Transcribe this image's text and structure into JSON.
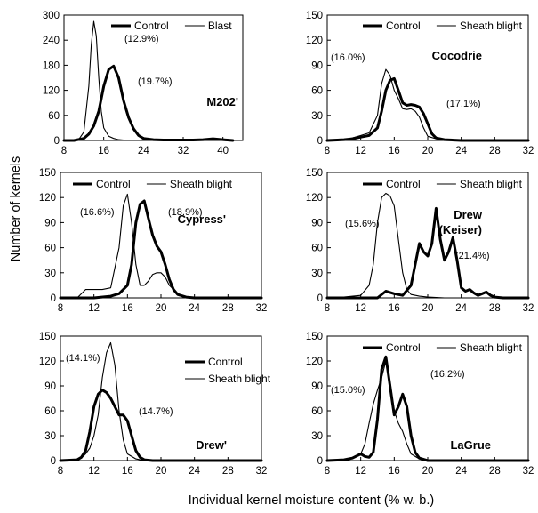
{
  "figure": {
    "ylabel": "Number of kernels",
    "xlabel": "Individual kernel moisture content (% w. b.)"
  },
  "chart_data": [
    {
      "type": "line",
      "variety": "M202'",
      "xlim": [
        8,
        44
      ],
      "ylim": [
        0,
        300
      ],
      "xticks": [
        "8",
        "16",
        "24",
        "32",
        "40"
      ],
      "yticks": [
        "0",
        "60",
        "120",
        "180",
        "240",
        "300"
      ],
      "legend": [
        "Control",
        "Blast"
      ],
      "annotations": [
        "(12.9%)",
        "(19.7%)"
      ],
      "series": [
        {
          "name": "Control",
          "x": [
            8,
            10,
            12,
            13,
            14,
            15,
            16,
            17,
            18,
            19,
            20,
            21,
            22,
            23,
            24,
            26,
            28,
            30,
            32,
            34,
            36,
            38,
            40,
            42
          ],
          "y": [
            0,
            0,
            5,
            15,
            35,
            70,
            130,
            170,
            178,
            150,
            95,
            55,
            28,
            12,
            5,
            2,
            1,
            1,
            1,
            1,
            2,
            4,
            2,
            0
          ]
        },
        {
          "name": "Blast",
          "x": [
            8,
            10,
            11,
            12,
            13,
            13.5,
            14,
            14.5,
            15,
            15.5,
            16,
            17,
            18,
            19,
            20,
            22,
            24,
            30,
            40,
            42
          ],
          "y": [
            0,
            0,
            3,
            20,
            130,
            230,
            285,
            250,
            150,
            70,
            30,
            10,
            5,
            2,
            1,
            0,
            0,
            0,
            0,
            0
          ]
        }
      ]
    },
    {
      "type": "line",
      "variety": "Cocodrie",
      "xlim": [
        8,
        32
      ],
      "ylim": [
        0,
        150
      ],
      "xticks": [
        "8",
        "12",
        "16",
        "20",
        "24",
        "28",
        "32"
      ],
      "yticks": [
        "0",
        "30",
        "60",
        "90",
        "120",
        "150"
      ],
      "legend": [
        "Control",
        "Sheath blight"
      ],
      "annotations": [
        "(16.0%)",
        "(17.1%)"
      ],
      "series": [
        {
          "name": "Control",
          "x": [
            8,
            10,
            11,
            12,
            13,
            14,
            14.5,
            15,
            15.5,
            16,
            16.5,
            17,
            17.5,
            18,
            18.5,
            19,
            19.5,
            20,
            20.5,
            21,
            22,
            24,
            32
          ],
          "y": [
            0,
            1,
            2,
            4,
            6,
            15,
            35,
            60,
            72,
            74,
            60,
            45,
            42,
            43,
            42,
            40,
            32,
            20,
            8,
            3,
            1,
            0,
            0
          ]
        },
        {
          "name": "Sheath blight",
          "x": [
            8,
            10,
            11,
            12,
            13,
            14,
            14.5,
            15,
            15.5,
            16,
            16.5,
            17,
            17.5,
            18,
            18.5,
            19,
            19.5,
            20,
            21,
            22,
            24,
            32
          ],
          "y": [
            0,
            1,
            3,
            6,
            9,
            30,
            68,
            85,
            78,
            60,
            50,
            38,
            37,
            38,
            35,
            28,
            15,
            5,
            2,
            1,
            0,
            0
          ]
        }
      ]
    },
    {
      "type": "line",
      "variety": "Cypress'",
      "xlim": [
        8,
        32
      ],
      "ylim": [
        0,
        150
      ],
      "xticks": [
        "8",
        "12",
        "16",
        "20",
        "24",
        "28",
        "32"
      ],
      "yticks": [
        "0",
        "30",
        "60",
        "90",
        "120",
        "150"
      ],
      "legend": [
        "Control",
        "Sheath blight"
      ],
      "annotations": [
        "(16.6%)",
        "(18.9%)"
      ],
      "series": [
        {
          "name": "Control",
          "x": [
            8,
            12,
            14,
            15,
            16,
            16.5,
            17,
            17.5,
            18,
            18.5,
            19,
            19.5,
            20,
            20.5,
            21,
            21.5,
            22,
            23,
            24,
            32
          ],
          "y": [
            0,
            0,
            2,
            5,
            15,
            40,
            90,
            112,
            116,
            95,
            75,
            62,
            55,
            40,
            22,
            10,
            4,
            1,
            0,
            0
          ]
        },
        {
          "name": "Sheath blight",
          "x": [
            8,
            10,
            11,
            12,
            13,
            14,
            15,
            15.5,
            16,
            16.5,
            17,
            17.5,
            18,
            18.5,
            19,
            19.5,
            20,
            20.5,
            21,
            22,
            23,
            24,
            32
          ],
          "y": [
            0,
            0,
            10,
            10,
            10,
            12,
            60,
            110,
            124,
            90,
            40,
            15,
            15,
            20,
            28,
            30,
            30,
            25,
            15,
            5,
            1,
            0,
            0
          ]
        }
      ]
    },
    {
      "type": "line",
      "variety": "Drew (Keiser)",
      "xlim": [
        8,
        32
      ],
      "ylim": [
        0,
        150
      ],
      "xticks": [
        "8",
        "12",
        "16",
        "20",
        "24",
        "28",
        "32"
      ],
      "yticks": [
        "0",
        "30",
        "60",
        "90",
        "120",
        "150"
      ],
      "legend": [
        "Control",
        "Sheath blight"
      ],
      "annotations": [
        "(15.6%)",
        "(21.4%)"
      ],
      "series": [
        {
          "name": "Control",
          "x": [
            8,
            14,
            15,
            16,
            17,
            18,
            18.5,
            19,
            19.5,
            20,
            20.5,
            21,
            21.5,
            22,
            22.5,
            23,
            23.5,
            24,
            24.5,
            25,
            25.5,
            26,
            26.5,
            27,
            27.5,
            28,
            29,
            32
          ],
          "y": [
            0,
            0,
            8,
            5,
            3,
            15,
            40,
            65,
            55,
            50,
            65,
            107,
            70,
            45,
            55,
            72,
            45,
            12,
            8,
            10,
            6,
            3,
            5,
            7,
            3,
            1,
            0,
            0
          ]
        },
        {
          "name": "Sheath blight",
          "x": [
            8,
            10,
            12,
            13,
            13.5,
            14,
            14.5,
            15,
            15.5,
            16,
            16.5,
            17,
            17.5,
            18,
            19,
            20,
            22,
            24,
            32
          ],
          "y": [
            0,
            1,
            3,
            15,
            40,
            90,
            120,
            125,
            122,
            110,
            70,
            30,
            10,
            4,
            2,
            1,
            0,
            0,
            0
          ]
        }
      ]
    },
    {
      "type": "line",
      "variety": "Drew'",
      "xlim": [
        8,
        32
      ],
      "ylim": [
        0,
        150
      ],
      "xticks": [
        "8",
        "12",
        "16",
        "20",
        "24",
        "28",
        "32"
      ],
      "yticks": [
        "0",
        "30",
        "60",
        "90",
        "120",
        "150"
      ],
      "legend": [
        "Control",
        "Sheath blight"
      ],
      "annotations": [
        "(14.1%)",
        "(14.7%)"
      ],
      "series": [
        {
          "name": "Control",
          "x": [
            8,
            10,
            10.5,
            11,
            11.5,
            12,
            12.5,
            13,
            13.5,
            14,
            14.5,
            15,
            15.5,
            16,
            16.5,
            17,
            17.5,
            18,
            19,
            20,
            32
          ],
          "y": [
            0,
            1,
            4,
            12,
            35,
            65,
            80,
            85,
            82,
            75,
            65,
            55,
            55,
            48,
            30,
            12,
            4,
            1,
            0,
            0,
            0
          ]
        },
        {
          "name": "Sheath blight",
          "x": [
            8,
            10,
            10.5,
            11,
            11.5,
            12,
            12.5,
            13,
            13.5,
            14,
            14.5,
            15,
            15.5,
            16,
            17,
            18,
            20,
            32
          ],
          "y": [
            0,
            1,
            3,
            8,
            15,
            30,
            55,
            100,
            130,
            142,
            115,
            60,
            25,
            8,
            2,
            0,
            0,
            0
          ]
        }
      ]
    },
    {
      "type": "line",
      "variety": "LaGrue",
      "xlim": [
        8,
        32
      ],
      "ylim": [
        0,
        150
      ],
      "xticks": [
        "8",
        "12",
        "16",
        "20",
        "24",
        "28",
        "32"
      ],
      "yticks": [
        "0",
        "30",
        "60",
        "90",
        "120",
        "150"
      ],
      "legend": [
        "Control",
        "Sheath blight"
      ],
      "annotations": [
        "(15.0%)",
        "(16.2%)"
      ],
      "series": [
        {
          "name": "Control",
          "x": [
            8,
            10,
            11,
            12,
            12.5,
            13,
            13.5,
            14,
            14.5,
            15,
            15.5,
            16,
            16.5,
            17,
            17.5,
            18,
            18.5,
            19,
            20,
            32
          ],
          "y": [
            0,
            1,
            3,
            8,
            5,
            4,
            10,
            50,
            110,
            125,
            90,
            55,
            65,
            80,
            65,
            30,
            10,
            3,
            0,
            0
          ]
        },
        {
          "name": "Sheath blight",
          "x": [
            8,
            10,
            11,
            12,
            12.5,
            13,
            13.5,
            14,
            14.5,
            15,
            15.5,
            16,
            16.5,
            17,
            17.5,
            18,
            19,
            20,
            32
          ],
          "y": [
            0,
            1,
            3,
            8,
            20,
            45,
            68,
            85,
            100,
            120,
            95,
            60,
            45,
            35,
            20,
            8,
            2,
            0,
            0
          ]
        }
      ]
    }
  ]
}
